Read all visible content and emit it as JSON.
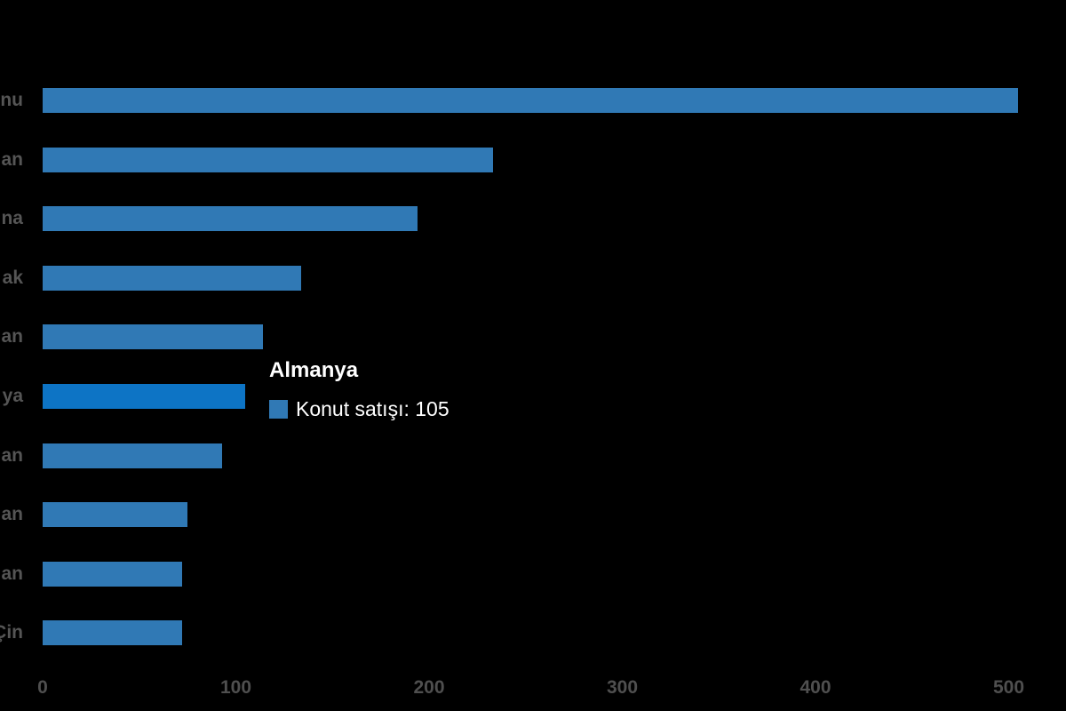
{
  "chart_data": {
    "type": "bar",
    "orientation": "horizontal",
    "title": "",
    "xlabel": "",
    "ylabel": "",
    "categories": [
      "nu",
      "an",
      "na",
      "ak",
      "an",
      "ya",
      "an",
      "an",
      "an",
      "Çin"
    ],
    "categories_note": "category labels are truncated at the left edge of the image; only the trailing characters are visible",
    "series": [
      {
        "name": "Konut satışı",
        "values": [
          505,
          233,
          194,
          134,
          114,
          105,
          93,
          75,
          72,
          72
        ]
      }
    ],
    "x_ticks": [
      "0",
      "100",
      "200",
      "300",
      "400",
      "500"
    ],
    "x_tick_values": [
      0,
      100,
      200,
      300,
      400,
      500
    ],
    "xlim": [
      0,
      520
    ],
    "grid": false,
    "legend": false,
    "highlight_index": 5
  },
  "tooltip": {
    "title": "Almanya",
    "line": "Konut satışı: 105",
    "value": 105
  },
  "colors": {
    "background": "#000000",
    "bar": "#3079b5",
    "bar_hover": "#0d74c5",
    "axis_label": "#4f4f4f",
    "category_label": "#555555",
    "tooltip_text": "#ffffff",
    "tooltip_swatch": "#3079b5"
  }
}
